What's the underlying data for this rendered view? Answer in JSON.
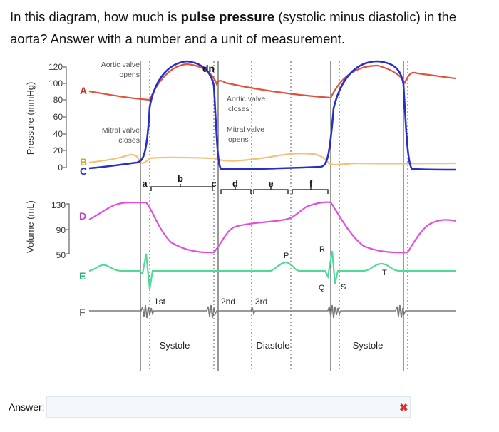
{
  "question": {
    "part1": "In this diagram, how much is ",
    "bold": "pulse pressure",
    "part2": " (systolic minus diastolic) in the aorta? Answer with a number and a unit of measurement."
  },
  "diagram": {
    "pressure_axis_label": "Pressure (mmHg)",
    "volume_axis_label": "Volume (mL)",
    "pressure_ticks": [
      "120",
      "100",
      "80",
      "60",
      "40",
      "20",
      "0"
    ],
    "volume_ticks": [
      "130",
      "90",
      "50"
    ],
    "letters": {
      "A": "A",
      "B": "B",
      "C": "C",
      "D": "D",
      "E": "E",
      "F": "F"
    },
    "annotations": {
      "aortic_valve_opens_1": "Aortic valve",
      "aortic_valve_opens_2": "opens",
      "mitral_valve_closes_1": "Mitral valve",
      "mitral_valve_closes_2": "closes",
      "aortic_valve_closes_1": "Aortic valve",
      "aortic_valve_closes_2": "closes",
      "mitral_valve_opens_1": "Mitral valve",
      "mitral_valve_opens_2": "opens",
      "dn": "dn"
    },
    "phases": {
      "a": "a",
      "b": "b",
      "c": "c",
      "d": "d",
      "e": "e",
      "f": "f"
    },
    "ecg": {
      "P": "P",
      "Q": "Q",
      "R": "R",
      "S": "S",
      "T": "T"
    },
    "sounds": {
      "first": "1st",
      "second": "2nd",
      "third": "3rd"
    },
    "periods": {
      "systole_1": "Systole",
      "diastole": "Diastole",
      "systole_2": "Systole"
    },
    "colors": {
      "aortic": "#e0523a",
      "ventricular": "#2630c9",
      "atrial": "#f2c27a",
      "volume": "#e050dc",
      "ecg": "#52d99a",
      "sound": "#7a7a7a",
      "wrong": "#d9342b"
    }
  },
  "answer": {
    "label": "Answer:",
    "value": "",
    "status_icon": "x-icon"
  }
}
